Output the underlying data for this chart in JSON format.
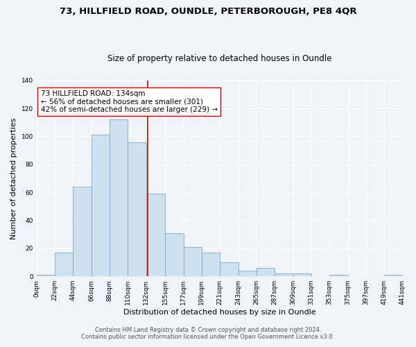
{
  "title_line1": "73, HILLFIELD ROAD, OUNDLE, PETERBOROUGH, PE8 4QR",
  "title_line2": "Size of property relative to detached houses in Oundle",
  "xlabel": "Distribution of detached houses by size in Oundle",
  "ylabel": "Number of detached properties",
  "bar_edges": [
    0,
    22,
    44,
    66,
    88,
    110,
    132,
    155,
    177,
    199,
    221,
    243,
    265,
    287,
    309,
    331,
    353,
    375,
    397,
    419,
    441
  ],
  "bar_heights": [
    1,
    17,
    64,
    101,
    112,
    96,
    59,
    31,
    21,
    17,
    10,
    4,
    6,
    2,
    2,
    0,
    1,
    0,
    0,
    1
  ],
  "bar_color": "#cce0f0",
  "bar_edge_color": "#80a8c8",
  "property_value": 134,
  "vline_color": "#cc0000",
  "annotation_text": "73 HILLFIELD ROAD: 134sqm\n← 56% of detached houses are smaller (301)\n42% of semi-detached houses are larger (229) →",
  "annotation_box_color": "#ffffff",
  "annotation_box_edge_color": "#cc0000",
  "ylim": [
    0,
    140
  ],
  "yticks": [
    0,
    20,
    40,
    60,
    80,
    100,
    120,
    140
  ],
  "tick_labels": [
    "0sqm",
    "22sqm",
    "44sqm",
    "66sqm",
    "88sqm",
    "110sqm",
    "132sqm",
    "155sqm",
    "177sqm",
    "199sqm",
    "221sqm",
    "243sqm",
    "265sqm",
    "287sqm",
    "309sqm",
    "331sqm",
    "353sqm",
    "375sqm",
    "397sqm",
    "419sqm",
    "441sqm"
  ],
  "footer_line1": "Contains HM Land Registry data © Crown copyright and database right 2024.",
  "footer_line2": "Contains public sector information licensed under the Open Government Licence v3.0.",
  "background_color": "#f0f4f8",
  "plot_background_color": "#f0f4f8",
  "grid_color": "#ffffff",
  "title_fontsize": 9.5,
  "subtitle_fontsize": 8.5,
  "axis_label_fontsize": 8,
  "tick_fontsize": 6.5,
  "footer_fontsize": 6,
  "annotation_fontsize": 7.5,
  "figwidth": 6.0,
  "figheight": 5.0,
  "dpi": 100
}
